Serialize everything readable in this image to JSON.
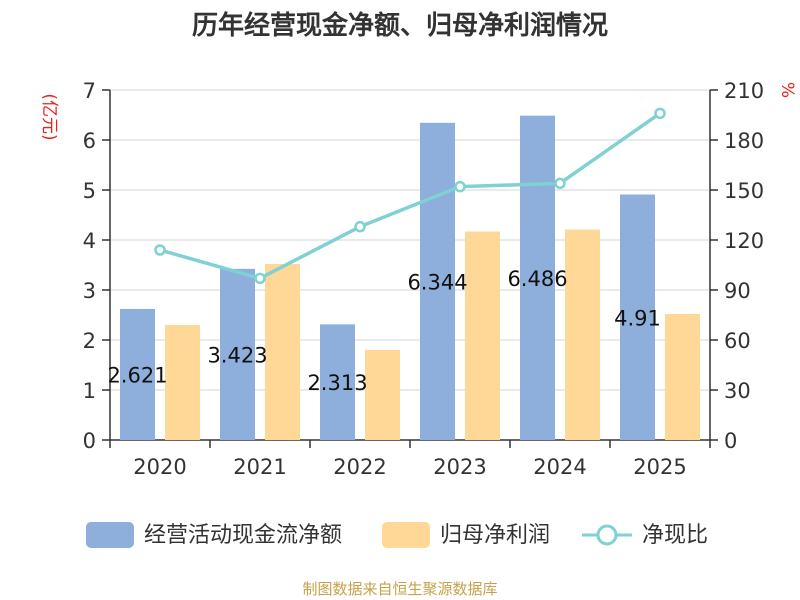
{
  "chart_data": {
    "type": "bar+line",
    "title": "历年经营现金净额、归母净利润情况",
    "categories": [
      "2020",
      "2021",
      "2022",
      "2023",
      "2024",
      "2025"
    ],
    "series": [
      {
        "name": "经营活动现金流净额",
        "type": "bar",
        "axis": "left",
        "values": [
          2.621,
          3.423,
          2.313,
          6.344,
          6.486,
          4.91
        ],
        "color": "#8EAEDB"
      },
      {
        "name": "归母净利润",
        "type": "bar",
        "axis": "left",
        "values": [
          2.3,
          3.52,
          1.8,
          4.17,
          4.21,
          2.52
        ],
        "color": "#FFD897"
      },
      {
        "name": "净现比",
        "type": "line",
        "axis": "right",
        "values": [
          114,
          97,
          128,
          152,
          154,
          196
        ],
        "color": "#7FD1D3"
      }
    ],
    "data_labels": [
      "2.621",
      "3.423",
      "2.313",
      "6.344",
      "6.486",
      "4.91"
    ],
    "left_axis": {
      "label": "(亿元)",
      "ticks": [
        "0",
        "1",
        "2",
        "3",
        "4",
        "5",
        "6",
        "7"
      ],
      "ylim": [
        0,
        7
      ]
    },
    "right_axis": {
      "label": "%",
      "ticks": [
        "0",
        "30",
        "60",
        "90",
        "120",
        "150",
        "180",
        "210"
      ],
      "ylim": [
        0,
        210
      ]
    },
    "legend_position": "bottom",
    "source": "制图数据来自恒生聚源数据库",
    "colors": {
      "axis_label": "#E8231E",
      "source": "#C8A14A",
      "grid": "#E3E3E3"
    }
  }
}
